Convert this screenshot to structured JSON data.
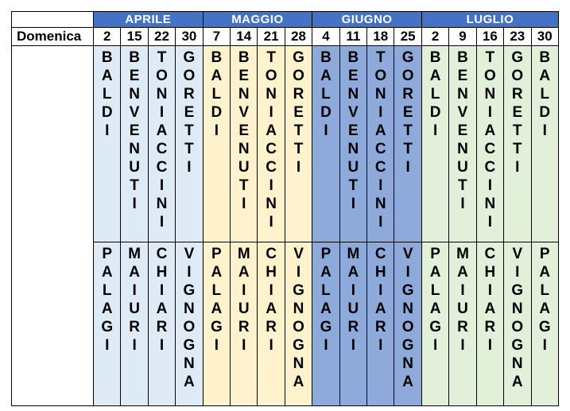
{
  "table": {
    "row_label": "Domenica",
    "header_bg": "#4472C4",
    "header_text_color": "#FFFFFF",
    "border_color": "#000000",
    "months": [
      {
        "name": "APRILE",
        "column_color": "#DEEAF6",
        "dates": [
          "2",
          "15",
          "22",
          "30"
        ],
        "top_names": [
          "BALDI",
          "BENVENUTI",
          "TONIACCINI",
          "GORETTI"
        ],
        "bottom_names": [
          "PALAGI",
          "MAIURI",
          "CHIARI",
          "VIGNOGNA"
        ]
      },
      {
        "name": "MAGGIO",
        "column_color": "#FFF2CC",
        "dates": [
          "7",
          "14",
          "21",
          "28"
        ],
        "top_names": [
          "BALDI",
          "BENVENUTI",
          "TONIACCINI",
          "GORETTI"
        ],
        "bottom_names": [
          "PALAGI",
          "MAIURI",
          "CHIARI",
          "VIGNOGNA"
        ]
      },
      {
        "name": "GIUGNO",
        "column_color": "#8EAADB",
        "dates": [
          "4",
          "11",
          "18",
          "25"
        ],
        "top_names": [
          "BALDI",
          "BENVENUTI",
          "TONIACCINI",
          "GORETTI"
        ],
        "bottom_names": [
          "PALAGI",
          "MAIURI",
          "CHIARI",
          "VIGNOGNA"
        ]
      },
      {
        "name": "LUGLIO",
        "column_color": "#E2EFD9",
        "dates": [
          "2",
          "9",
          "16",
          "23",
          "30"
        ],
        "top_names": [
          "BALDI",
          "BENVENUTI",
          "TONIACCINI",
          "GORETTI",
          "BALDI"
        ],
        "bottom_names": [
          "PALAGI",
          "MAIURI",
          "CHIARI",
          "VIGNOGNA",
          "PALAGI"
        ]
      }
    ]
  }
}
